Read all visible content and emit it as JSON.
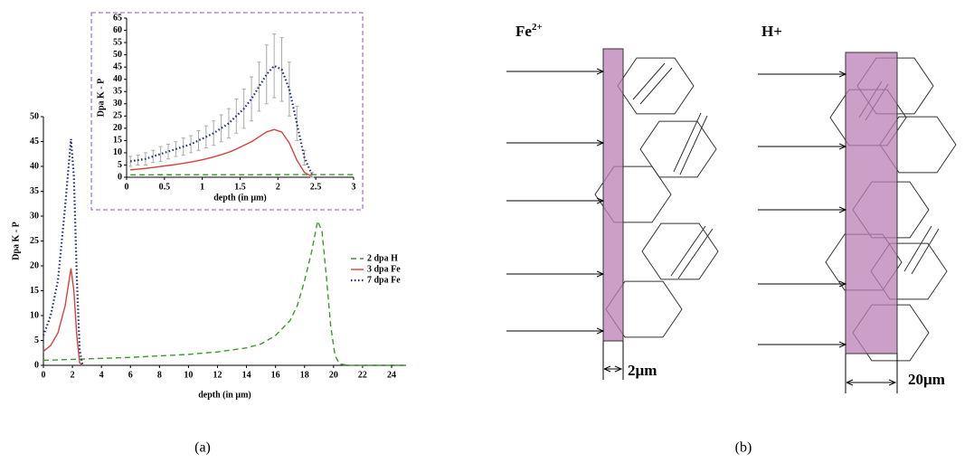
{
  "chart_data": [
    {
      "type": "line",
      "title_position": "none",
      "x_label": "depth (in µm)",
      "y_label": "Dpa K - P",
      "xlim": [
        0,
        25
      ],
      "xticks": [
        0,
        2,
        4,
        6,
        8,
        10,
        12,
        14,
        16,
        18,
        20,
        22,
        24
      ],
      "ylim": [
        0,
        50
      ],
      "yticks": [
        0,
        5,
        10,
        15,
        20,
        25,
        30,
        35,
        40,
        45,
        50
      ],
      "legend": "center right",
      "series": [
        {
          "name": "2 dpa H",
          "color": "#3a9a2a",
          "dash": "dashed",
          "x": [
            0,
            2,
            4,
            6,
            8,
            10,
            12,
            14,
            15,
            16,
            17,
            17.5,
            18,
            18.5,
            18.9,
            19.2,
            19.5,
            19.8,
            20.1,
            20.4,
            21,
            25
          ],
          "values": [
            1,
            1.2,
            1.4,
            1.6,
            1.9,
            2.2,
            2.7,
            3.5,
            4.3,
            6,
            9,
            12,
            17,
            23,
            29,
            27,
            18,
            8,
            2,
            0.3,
            0,
            0
          ]
        },
        {
          "name": "3 dpa Fe",
          "color": "#d9413a",
          "dash": "solid",
          "x": [
            0,
            0.5,
            1,
            1.5,
            1.9,
            2.1,
            2.3,
            2.5,
            2.7
          ],
          "values": [
            2.8,
            4,
            6.5,
            12,
            19.5,
            15,
            6,
            0.5,
            0
          ]
        },
        {
          "name": "7 dpa Fe",
          "color": "#1c2a78",
          "dash": "dotted",
          "x": [
            0,
            0.5,
            1,
            1.5,
            1.9,
            2.1,
            2.3,
            2.5,
            2.7
          ],
          "values": [
            6,
            10,
            17,
            32,
            45.5,
            38,
            18,
            3,
            0
          ]
        }
      ]
    },
    {
      "type": "line",
      "x_label": "depth (in µm)",
      "y_label": "Dpa K - P",
      "xlim": [
        0,
        3
      ],
      "xticks": [
        0,
        0.5,
        1,
        1.5,
        2,
        2.5,
        3
      ],
      "ylim": [
        0,
        65
      ],
      "yticks": [
        0,
        5,
        10,
        15,
        20,
        25,
        30,
        35,
        40,
        45,
        50,
        55,
        60,
        65
      ],
      "series": [
        {
          "color": "#3a9a2a",
          "dash": "dashed",
          "x": [
            0.05,
            3
          ],
          "values": [
            1,
            1.1
          ]
        },
        {
          "color": "#d9413a",
          "dash": "solid",
          "x": [
            0.05,
            0.15,
            0.25,
            0.35,
            0.45,
            0.55,
            0.65,
            0.75,
            0.85,
            0.95,
            1.05,
            1.15,
            1.25,
            1.35,
            1.45,
            1.55,
            1.65,
            1.75,
            1.85,
            1.95,
            2.05,
            2.15,
            2.25,
            2.35,
            2.45
          ],
          "values": [
            3,
            3.3,
            3.6,
            4,
            4.4,
            4.8,
            5.2,
            5.7,
            6.2,
            6.8,
            7.5,
            8.3,
            9.2,
            10.2,
            11.5,
            13,
            14.5,
            16.5,
            18.5,
            19.5,
            18.5,
            14,
            7,
            2,
            0.3
          ]
        },
        {
          "color": "#1c2a78",
          "dash": "dotted",
          "x": [
            0.05,
            0.15,
            0.25,
            0.35,
            0.45,
            0.55,
            0.65,
            0.75,
            0.85,
            0.95,
            1.05,
            1.15,
            1.25,
            1.35,
            1.45,
            1.55,
            1.65,
            1.75,
            1.85,
            1.95,
            2.05,
            2.15,
            2.25,
            2.35,
            2.45
          ],
          "values": [
            6.5,
            7,
            7.5,
            8.5,
            9.5,
            10.5,
            11.5,
            12.5,
            13.5,
            15,
            16.5,
            18,
            20,
            22,
            25,
            28,
            32,
            37,
            42,
            45.5,
            44,
            36,
            22,
            8,
            1
          ],
          "errors": [
            2,
            2,
            2.5,
            2.5,
            3,
            3,
            3,
            3.5,
            3.5,
            4,
            4.5,
            5,
            5.5,
            6,
            7,
            8,
            9,
            10,
            12,
            13,
            13,
            11,
            7,
            3,
            1
          ]
        }
      ]
    }
  ],
  "figure": {
    "caption_a": "(a)",
    "caption_b": "(b)",
    "panel_b": {
      "left_ion": {
        "base": "Fe",
        "sup": "2+"
      },
      "right_ion": "H+",
      "left_width": "2µm",
      "right_width": "20µm"
    }
  }
}
